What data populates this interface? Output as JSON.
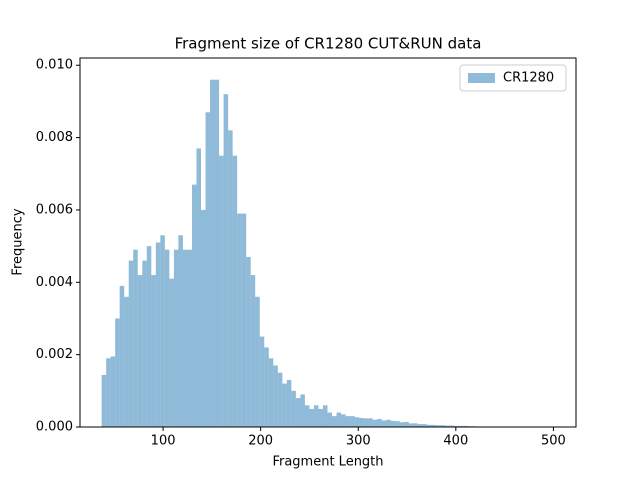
{
  "chart_data": {
    "type": "histogram",
    "title": "Fragment size of CR1280 CUT&RUN data",
    "x_label": "Fragment Length",
    "y_label": "Frequency",
    "legend": "upper right",
    "series": [
      {
        "name": "CR1280",
        "color": "#1f77b4",
        "alpha": 0.5
      }
    ],
    "bins": [
      37,
      41.63,
      46.26,
      50.89,
      55.52,
      60.15,
      64.78,
      69.41,
      74.04,
      78.67,
      83.3,
      87.93,
      92.56,
      97.19,
      101.82,
      106.45,
      111.08,
      115.71,
      120.34,
      124.97,
      129.6,
      134.23,
      138.86,
      143.49,
      148.12,
      152.75,
      157.38,
      162.01,
      166.64,
      171.27,
      175.9,
      180.53,
      185.16,
      189.79,
      194.42,
      199.05,
      203.68,
      208.31,
      212.94,
      217.57,
      222.2,
      226.83,
      231.46,
      236.09,
      240.72,
      245.35,
      249.98,
      254.61,
      259.24,
      263.87,
      268.5,
      273.13,
      277.76,
      282.39,
      287.02,
      291.65,
      296.28,
      300.91,
      305.54,
      310.17,
      314.8,
      319.43,
      324.06,
      328.69,
      333.32,
      337.95,
      342.58,
      347.21,
      351.84,
      356.47,
      361.1,
      365.73,
      370.36,
      374.99,
      379.62,
      384.25,
      388.88,
      393.51,
      398.14,
      402.77,
      407.4,
      412.03,
      416.66,
      421.29,
      425.92,
      430.55,
      435.18,
      439.81,
      444.44,
      449.07,
      453.7,
      458.33,
      462.96,
      467.59,
      472.22,
      476.85,
      481.48,
      486.11,
      490.74,
      495.37,
      500
    ],
    "values": [
      0.00144,
      0.0019,
      0.00195,
      0.003,
      0.0039,
      0.0036,
      0.0046,
      0.0049,
      0.0042,
      0.0046,
      0.005,
      0.0042,
      0.0051,
      0.0053,
      0.0049,
      0.0041,
      0.0049,
      0.0053,
      0.0049,
      0.0049,
      0.0067,
      0.0077,
      0.006,
      0.0087,
      0.0096,
      0.0096,
      0.0075,
      0.0092,
      0.0082,
      0.0075,
      0.0059,
      0.0059,
      0.0047,
      0.0042,
      0.0036,
      0.0025,
      0.0022,
      0.0019,
      0.0017,
      0.0015,
      0.0012,
      0.0013,
      0.001,
      0.0008,
      0.0009,
      0.0006,
      0.0005,
      0.0006,
      0.0005,
      0.0006,
      0.0004,
      0.0003,
      0.0004,
      0.00035,
      0.0003,
      0.0003,
      0.00027,
      0.00025,
      0.00024,
      0.00024,
      0.0002,
      0.00022,
      0.00018,
      0.0002,
      0.00017,
      0.00016,
      0.00013,
      0.00014,
      0.0001,
      0.0001,
      8e-05,
      8e-05,
      6e-05,
      6e-05,
      5e-05,
      5e-05,
      4e-05,
      4e-05,
      3e-05,
      3e-05,
      3e-05,
      2e-05,
      2e-05,
      1e-05,
      1e-05,
      1e-05,
      5e-06,
      5e-06,
      5e-06,
      5e-06,
      5e-06,
      5e-06,
      5e-06,
      5e-06,
      5e-06,
      5e-06,
      5e-06,
      5e-06,
      5e-06,
      5e-06
    ],
    "xlim": [
      14.85,
      523.15
    ],
    "ylim": [
      0,
      0.0102
    ],
    "xticks": [
      100,
      200,
      300,
      400,
      500
    ],
    "yticks": [
      {
        "value": 0,
        "label": "0.000"
      },
      {
        "value": 0.002,
        "label": "0.002"
      },
      {
        "value": 0.004,
        "label": "0.004"
      },
      {
        "value": 0.006,
        "label": "0.006"
      },
      {
        "value": 0.008,
        "label": "0.008"
      },
      {
        "value": 0.01,
        "label": "0.010"
      }
    ]
  }
}
